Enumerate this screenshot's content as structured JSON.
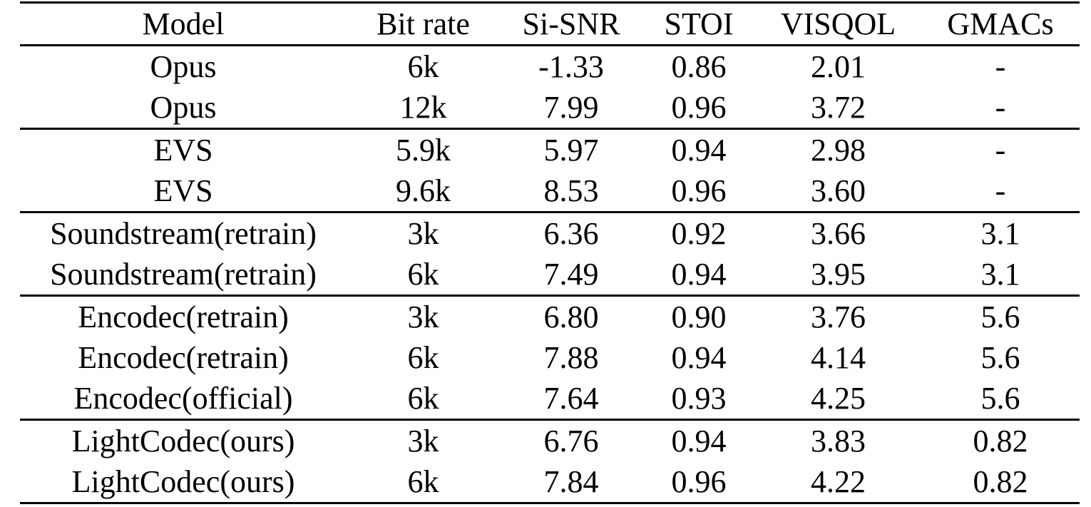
{
  "colors": {
    "background": "#ffffff",
    "text": "#000000",
    "rule": "#000000"
  },
  "table": {
    "columns": [
      "Model",
      "Bit rate",
      "Si-SNR",
      "STOI",
      "VISQOL",
      "GMACs"
    ],
    "column_keys": [
      "model",
      "bit-rate",
      "si-snr",
      "stoi",
      "visqol",
      "gmacs"
    ],
    "groups": [
      {
        "rows": [
          [
            "Opus",
            "6k",
            "-1.33",
            "0.86",
            "2.01",
            "-"
          ],
          [
            "Opus",
            "12k",
            "7.99",
            "0.96",
            "3.72",
            "-"
          ]
        ]
      },
      {
        "rows": [
          [
            "EVS",
            "5.9k",
            "5.97",
            "0.94",
            "2.98",
            "-"
          ],
          [
            "EVS",
            "9.6k",
            "8.53",
            "0.96",
            "3.60",
            "-"
          ]
        ]
      },
      {
        "rows": [
          [
            "Soundstream(retrain)",
            "3k",
            "6.36",
            "0.92",
            "3.66",
            "3.1"
          ],
          [
            "Soundstream(retrain)",
            "6k",
            "7.49",
            "0.94",
            "3.95",
            "3.1"
          ]
        ]
      },
      {
        "rows": [
          [
            "Encodec(retrain)",
            "3k",
            "6.80",
            "0.90",
            "3.76",
            "5.6"
          ],
          [
            "Encodec(retrain)",
            "6k",
            "7.88",
            "0.94",
            "4.14",
            "5.6"
          ],
          [
            "Encodec(official)",
            "6k",
            "7.64",
            "0.93",
            "4.25",
            "5.6"
          ]
        ]
      },
      {
        "rows": [
          [
            "LightCodec(ours)",
            "3k",
            "6.76",
            "0.94",
            "3.83",
            "0.82"
          ],
          [
            "LightCodec(ours)",
            "6k",
            "7.84",
            "0.96",
            "4.22",
            "0.82"
          ]
        ]
      }
    ]
  },
  "chart_data": {
    "type": "table",
    "title": "",
    "columns": [
      "Model",
      "Bit rate",
      "Si-SNR",
      "STOI",
      "VISQOL",
      "GMACs"
    ],
    "rows": [
      [
        "Opus",
        "6k",
        -1.33,
        0.86,
        2.01,
        null
      ],
      [
        "Opus",
        "12k",
        7.99,
        0.96,
        3.72,
        null
      ],
      [
        "EVS",
        "5.9k",
        5.97,
        0.94,
        2.98,
        null
      ],
      [
        "EVS",
        "9.6k",
        8.53,
        0.96,
        3.6,
        null
      ],
      [
        "Soundstream(retrain)",
        "3k",
        6.36,
        0.92,
        3.66,
        3.1
      ],
      [
        "Soundstream(retrain)",
        "6k",
        7.49,
        0.94,
        3.95,
        3.1
      ],
      [
        "Encodec(retrain)",
        "3k",
        6.8,
        0.9,
        3.76,
        5.6
      ],
      [
        "Encodec(retrain)",
        "6k",
        7.88,
        0.94,
        4.14,
        5.6
      ],
      [
        "Encodec(official)",
        "6k",
        7.64,
        0.93,
        4.25,
        5.6
      ],
      [
        "LightCodec(ours)",
        "3k",
        6.76,
        0.94,
        3.83,
        0.82
      ],
      [
        "LightCodec(ours)",
        "6k",
        7.84,
        0.96,
        4.22,
        0.82
      ]
    ]
  }
}
